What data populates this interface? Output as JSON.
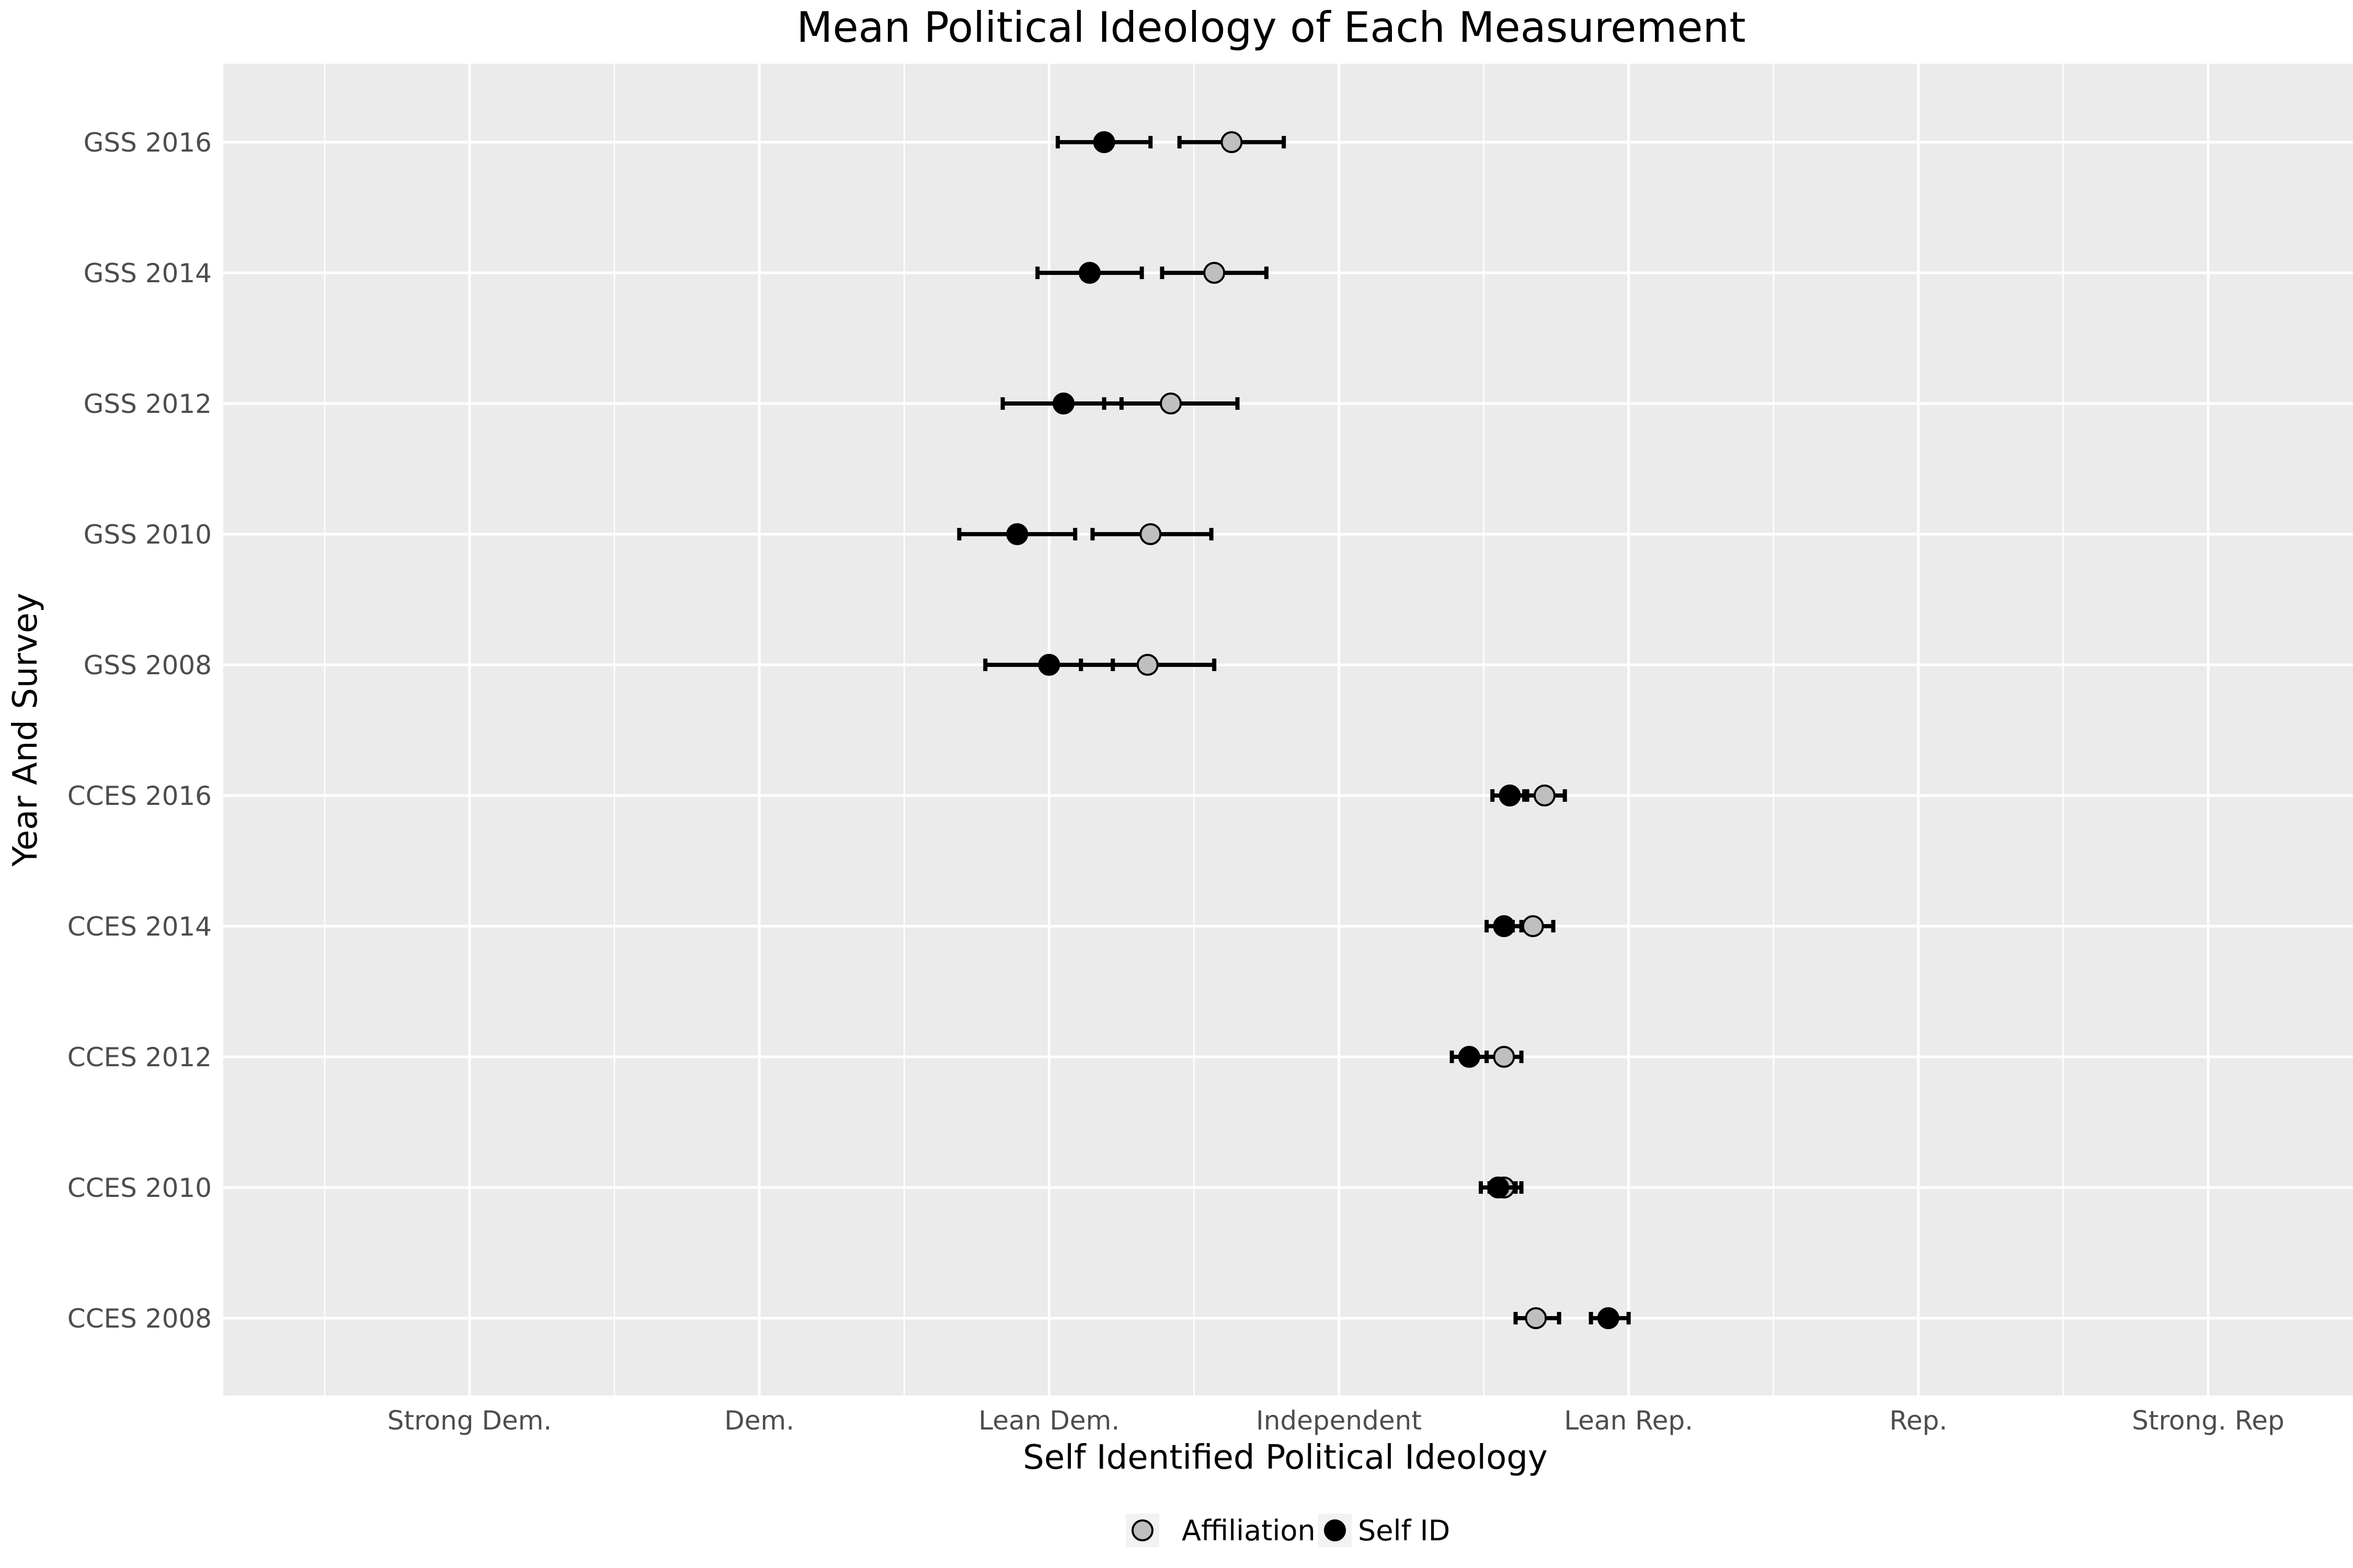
{
  "chart_data": {
    "type": "scatter",
    "title": "Mean Political Ideology of Each Measurement",
    "xlabel": "Self Identified Political Ideology",
    "ylabel": "Year And Survey",
    "xlim": [
      0.15,
      7.5
    ],
    "x_ticks": [
      1,
      2,
      3,
      4,
      5,
      6,
      7
    ],
    "x_tick_labels": [
      "Strong Dem.",
      "Dem.",
      "Lean Dem.",
      "Independent",
      "Lean Rep.",
      "Rep.",
      "Strong. Rep"
    ],
    "categories": [
      "GSS 2016",
      "GSS 2014",
      "GSS 2012",
      "GSS 2010",
      "GSS 2008",
      "CCES 2016",
      "CCES 2014",
      "CCES 2012",
      "CCES 2010",
      "CCES 2008"
    ],
    "grid": true,
    "legend_position": "bottom",
    "series": [
      {
        "name": "Affiliation",
        "color": "#bfbfbf",
        "points": [
          {
            "y": "GSS 2016",
            "x": 3.63,
            "lo": 3.45,
            "hi": 3.81
          },
          {
            "y": "GSS 2014",
            "x": 3.57,
            "lo": 3.39,
            "hi": 3.75
          },
          {
            "y": "GSS 2012",
            "x": 3.42,
            "lo": 3.19,
            "hi": 3.65
          },
          {
            "y": "GSS 2010",
            "x": 3.35,
            "lo": 3.15,
            "hi": 3.56
          },
          {
            "y": "GSS 2008",
            "x": 3.34,
            "lo": 3.11,
            "hi": 3.57
          },
          {
            "y": "CCES 2016",
            "x": 4.71,
            "lo": 4.64,
            "hi": 4.78
          },
          {
            "y": "CCES 2014",
            "x": 4.67,
            "lo": 4.6,
            "hi": 4.74
          },
          {
            "y": "CCES 2012",
            "x": 4.57,
            "lo": 4.51,
            "hi": 4.63
          },
          {
            "y": "CCES 2010",
            "x": 4.57,
            "lo": 4.52,
            "hi": 4.63
          },
          {
            "y": "CCES 2008",
            "x": 4.68,
            "lo": 4.61,
            "hi": 4.76
          }
        ]
      },
      {
        "name": "Self ID",
        "color": "#000000",
        "points": [
          {
            "y": "GSS 2016",
            "x": 3.19,
            "lo": 3.03,
            "hi": 3.35
          },
          {
            "y": "GSS 2014",
            "x": 3.14,
            "lo": 2.96,
            "hi": 3.32
          },
          {
            "y": "GSS 2012",
            "x": 3.05,
            "lo": 2.84,
            "hi": 3.25
          },
          {
            "y": "GSS 2010",
            "x": 2.89,
            "lo": 2.69,
            "hi": 3.09
          },
          {
            "y": "GSS 2008",
            "x": 3.0,
            "lo": 2.78,
            "hi": 3.22
          },
          {
            "y": "CCES 2016",
            "x": 4.59,
            "lo": 4.53,
            "hi": 4.65
          },
          {
            "y": "CCES 2014",
            "x": 4.57,
            "lo": 4.51,
            "hi": 4.63
          },
          {
            "y": "CCES 2012",
            "x": 4.45,
            "lo": 4.39,
            "hi": 4.51
          },
          {
            "y": "CCES 2010",
            "x": 4.55,
            "lo": 4.49,
            "hi": 4.61
          },
          {
            "y": "CCES 2008",
            "x": 4.93,
            "lo": 4.87,
            "hi": 5.0
          }
        ]
      }
    ]
  }
}
